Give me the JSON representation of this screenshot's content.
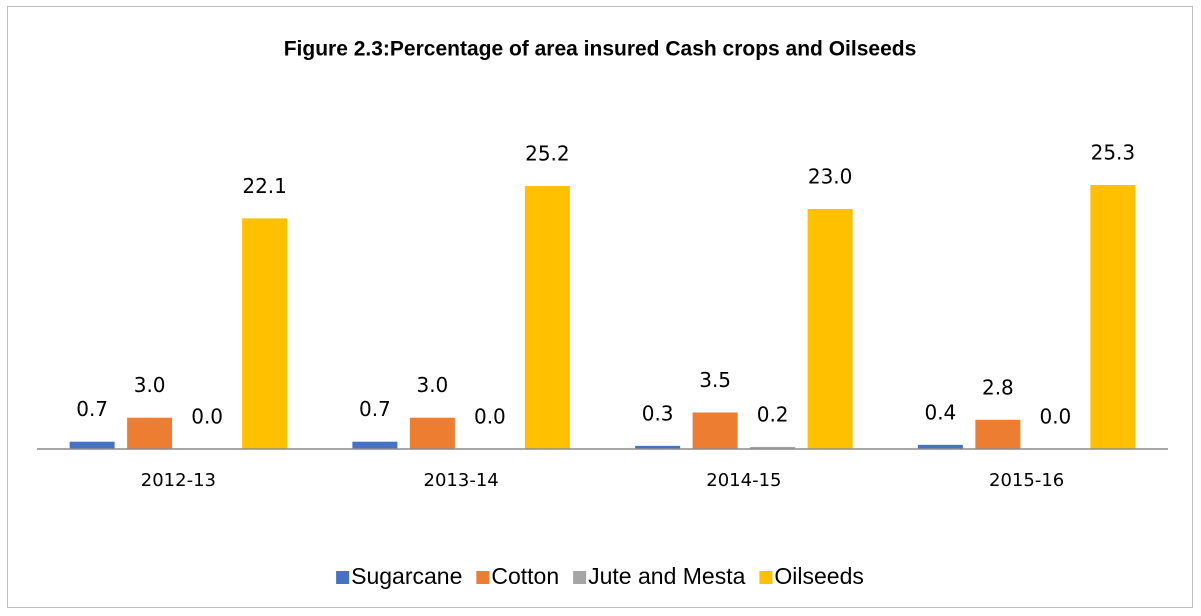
{
  "chart_data": {
    "type": "bar",
    "title": "Figure 2.3:Percentage of area insured Cash crops and Oilseeds",
    "categories": [
      "2012-13",
      "2013-14",
      "2014-15",
      "2015-16"
    ],
    "series": [
      {
        "name": "Sugarcane",
        "color": "#4472c4",
        "values": [
          0.7,
          0.7,
          0.3,
          0.4
        ],
        "value_labels": [
          "0.7",
          "0.7",
          "0.3",
          "0.4"
        ]
      },
      {
        "name": "Cotton",
        "color": "#ed7d31",
        "values": [
          3.0,
          3.0,
          3.5,
          2.8
        ],
        "value_labels": [
          "3.0",
          "3.0",
          "3.5",
          "2.8"
        ]
      },
      {
        "name": "Jute and Mesta",
        "color": "#a5a5a5",
        "values": [
          0.0,
          0.0,
          0.2,
          0.0
        ],
        "value_labels": [
          "0.0",
          "0.0",
          "0.2",
          "0.0"
        ]
      },
      {
        "name": "Oilseeds",
        "color": "#ffc000",
        "values": [
          22.1,
          25.2,
          23.0,
          25.3
        ],
        "value_labels": [
          "22.1",
          "25.2",
          "23.0",
          "25.3"
        ]
      }
    ],
    "legend": "bottom"
  }
}
